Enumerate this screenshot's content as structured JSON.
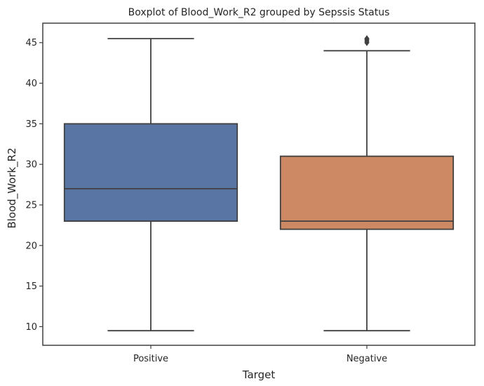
{
  "chart_data": {
    "type": "box",
    "title": "Boxplot of Blood_Work_R2 grouped by Sepssis Status",
    "xlabel": "Target",
    "ylabel": "Blood_Work_R2",
    "ylim": [
      7.7,
      47.4
    ],
    "yticks": [
      10,
      15,
      20,
      25,
      30,
      35,
      40,
      45
    ],
    "grid": false,
    "categories": [
      "Positive",
      "Negative"
    ],
    "boxes": [
      {
        "category": "Positive",
        "color": "#5875a4",
        "whisker_low": 9.5,
        "q1": 23,
        "median": 27,
        "q3": 35,
        "whisker_high": 45.5,
        "outliers": []
      },
      {
        "category": "Negative",
        "color": "#cc8963",
        "whisker_low": 9.5,
        "q1": 22,
        "median": 23,
        "q3": 31,
        "whisker_high": 44,
        "outliers": [
          45.0,
          45.2,
          45.4,
          45.5
        ]
      }
    ]
  }
}
